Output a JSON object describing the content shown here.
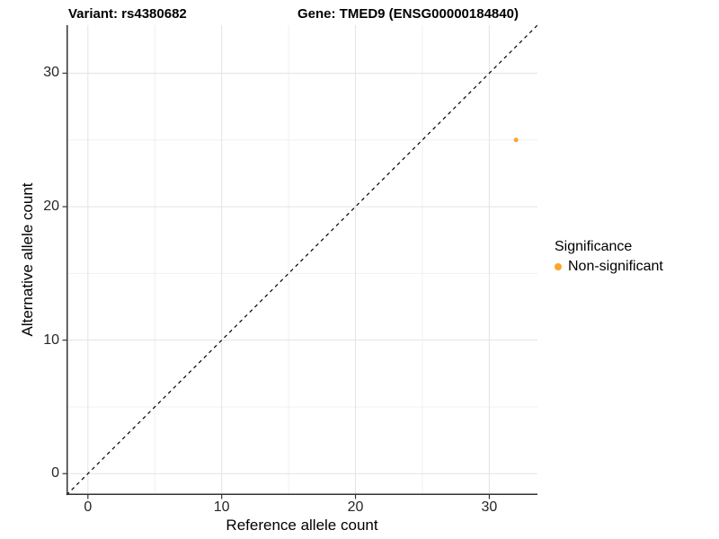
{
  "header": {
    "variant_title": "Variant: rs4380682",
    "gene_title": "Gene: TMED9 (ENSG00000184840)"
  },
  "colors": {
    "background": "#FFFFFF",
    "axis_line": "#333333",
    "tick_mark": "#333333",
    "tick_text": "#262626",
    "grid_major": "#E3E3E3",
    "grid_minor": "#F0F0F0",
    "identity_line": "#000000",
    "point_orange": "#FCA42C"
  },
  "chart_data": {
    "type": "scatter",
    "title": "Variant: rs4380682    Gene: TMED9 (ENSG00000184840)",
    "xlabel": "Reference allele count",
    "ylabel": "Alternative allele count",
    "xlim": [
      -1.6,
      33.6
    ],
    "ylim": [
      -1.6,
      33.6
    ],
    "x_major_ticks": [
      0,
      10,
      20,
      30
    ],
    "y_major_ticks": [
      0,
      10,
      20,
      30
    ],
    "x_minor_ticks": [
      5,
      15,
      25
    ],
    "y_minor_ticks": [
      5,
      15,
      25
    ],
    "grid": "major and minor gridlines, light gray on white",
    "identity_line": {
      "equation": "y = x",
      "style": "dashed",
      "color": "#000000",
      "from": -1.6,
      "to": 33.6
    },
    "point_radius": 2.5,
    "series": [
      {
        "name": "Non-significant",
        "color": "#FCA42C",
        "points": [
          {
            "x": 32,
            "y": 25
          }
        ]
      }
    ],
    "legend": {
      "title": "Significance",
      "position": "right-center",
      "items": [
        {
          "label": "Non-significant",
          "color": "#FCA42C"
        }
      ]
    }
  }
}
